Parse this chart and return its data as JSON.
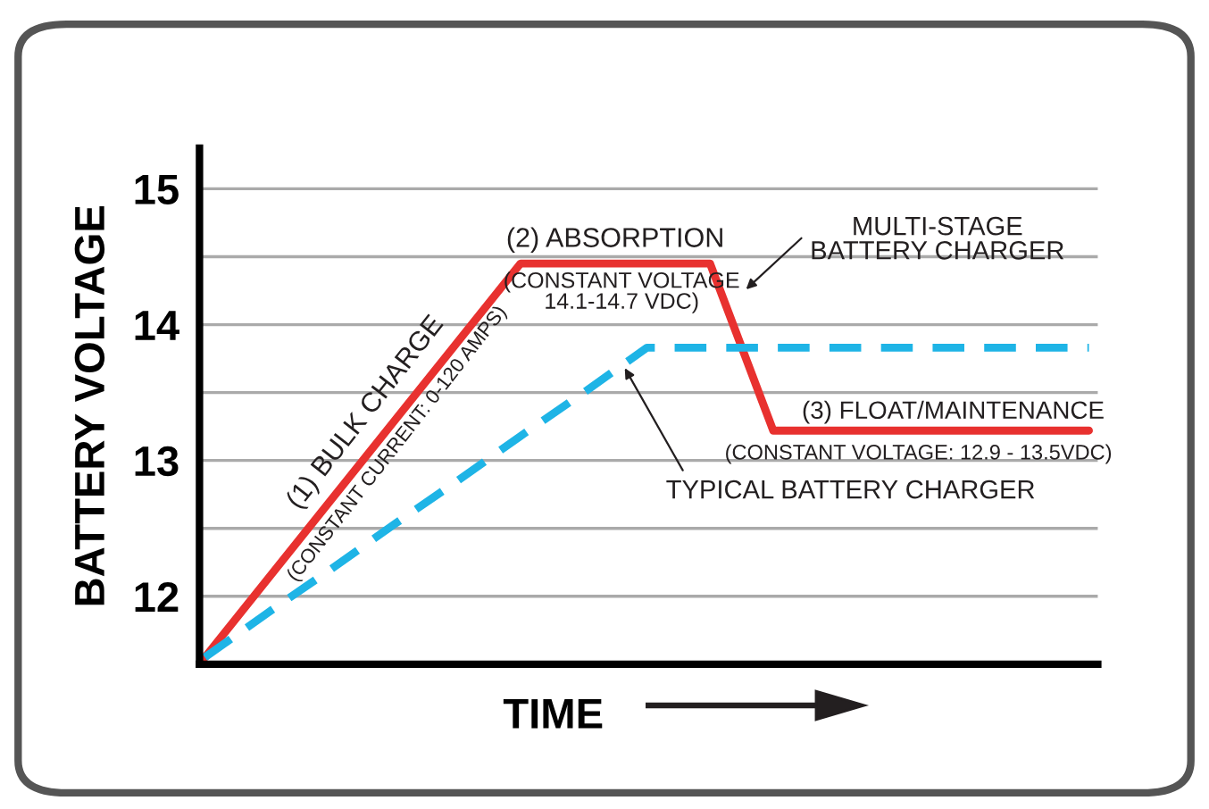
{
  "chart_data": {
    "type": "line",
    "xlabel": "TIME",
    "ylabel": "BATTERY VOLTAGE",
    "categories": [
      null,
      null,
      null,
      null,
      null,
      null,
      null,
      null,
      null,
      null,
      null,
      null,
      null,
      null,
      null
    ],
    "ylim": [
      11.5,
      15.3
    ],
    "yticks": [
      12,
      {
        "value": 12.5,
        "label": null
      },
      13,
      {
        "value": 13.5,
        "label": null
      },
      14,
      {
        "value": 14.5,
        "label": null
      },
      15
    ],
    "grid": "y",
    "series": [
      {
        "color": "#e8312f",
        "line_style": "solid",
        "values": [
          11.55,
          12.13,
          12.71,
          13.29,
          13.87,
          14.45,
          14.45,
          14.45,
          14.45,
          13.22,
          13.22,
          13.22,
          13.22,
          13.22,
          13.22
        ]
      },
      {
        "color": "#1eb4e6",
        "line_style": "dashed",
        "values": [
          11.55,
          11.88,
          12.2,
          12.53,
          12.85,
          13.18,
          13.5,
          13.83,
          13.83,
          13.83,
          13.83,
          13.83,
          13.83,
          13.83,
          13.83
        ]
      }
    ],
    "annotations": [
      "(1) BULK CHARGE",
      "(CONSTANT CURRENT: 0-120 AMPS)",
      "(2) ABSORPTION",
      "(CONSTANT VOLTAGE\n14.1-14.7 VDC)",
      "MULTI-STAGE\nBATTERY CHARGER",
      "(3) FLOAT/MAINTENANCE",
      "(CONSTANT VOLTAGE: 12.9 - 13.5VDC)",
      "TYPICAL BATTERY CHARGER"
    ]
  }
}
